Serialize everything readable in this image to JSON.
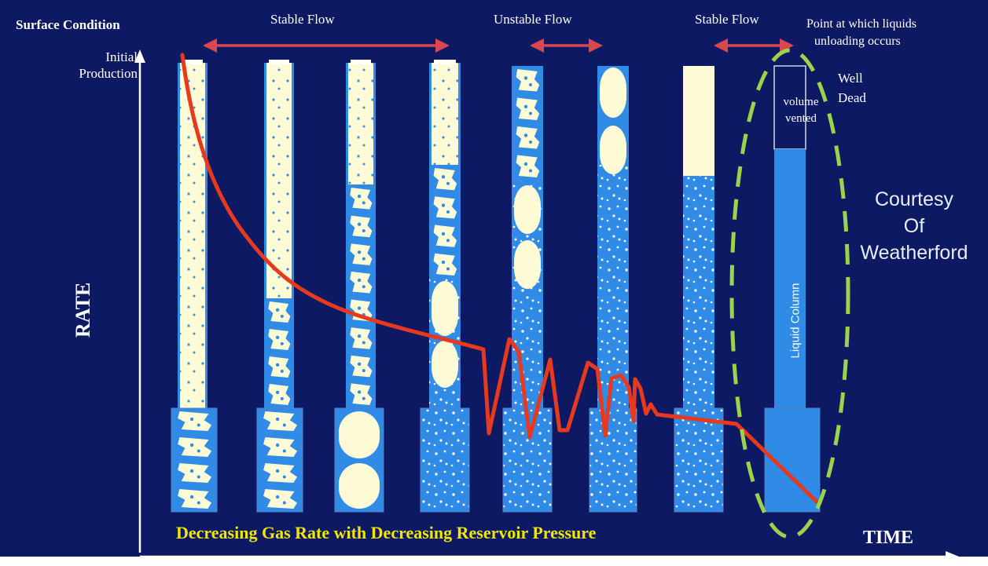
{
  "labels": {
    "surface_condition": "Surface Condition",
    "initial_production_line1": "Initial",
    "initial_production_line2": "Production",
    "y_axis": "RATE",
    "x_axis": "TIME",
    "caption": "Decreasing Gas Rate with Decreasing Reservoir Pressure",
    "stable_flow_1": "Stable Flow",
    "unstable_flow": "Unstable Flow",
    "stable_flow_2": "Stable Flow",
    "unloading_line1": "Point at which liquids",
    "unloading_line2": "unloading occurs",
    "well_dead_line1": "Well",
    "well_dead_line2": "Dead",
    "volume_vented_line1": "volume",
    "volume_vented_line2": "vented",
    "liquid_column": "Liquid Column",
    "courtesy_line1": "Courtesy",
    "courtesy_line2": "Of",
    "courtesy_line3": "Weatherford"
  },
  "colors": {
    "background": "#0d1a63",
    "water": "#2f8be6",
    "gas": "#fffbd6",
    "rate_curve": "#e8391f",
    "flow_arrows": "#d9484f",
    "dead_well_outline": "#9bd34a",
    "caption": "#f2e600"
  }
}
